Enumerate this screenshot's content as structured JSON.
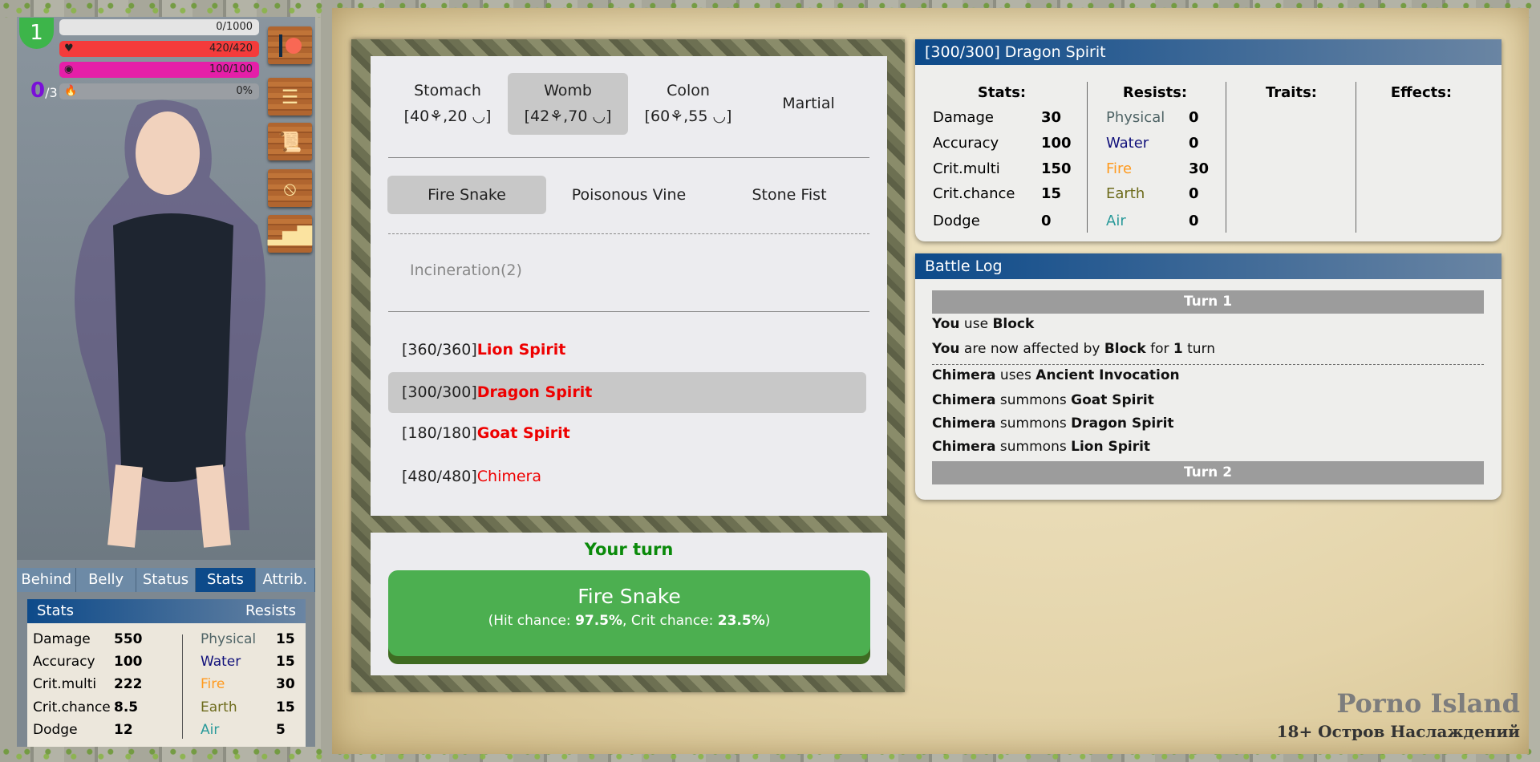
{
  "player": {
    "level": "1",
    "xp": "0/1000",
    "hp": "420/420",
    "lust": "100/100",
    "fire": "0%",
    "charges_current": "0",
    "charges_max": "/3",
    "xp_fraction": 0,
    "hp_fraction": 1,
    "lust_fraction": 1,
    "fire_fraction": 0
  },
  "side_buttons": [
    "patreon-icon",
    "list-icon",
    "scroll-icon",
    "forbidden-icon",
    "stats-chart-icon"
  ],
  "side_tabs": [
    {
      "label": "Behind"
    },
    {
      "label": "Belly"
    },
    {
      "label": "Status"
    },
    {
      "label": "Stats",
      "active": true
    },
    {
      "label": "Attrib."
    }
  ],
  "player_stats": {
    "title": "Stats",
    "resists_title": "Resists",
    "stats": [
      {
        "k": "Damage",
        "v": "550"
      },
      {
        "k": "Accuracy",
        "v": "100"
      },
      {
        "k": "Crit.multi",
        "v": "222"
      },
      {
        "k": "Crit.chance",
        "v": "8.5"
      },
      {
        "k": "Dodge",
        "v": "12"
      }
    ],
    "resists": [
      {
        "k": "Physical",
        "v": "15"
      },
      {
        "k": "Water",
        "v": "15"
      },
      {
        "k": "Fire",
        "v": "30"
      },
      {
        "k": "Earth",
        "v": "15"
      },
      {
        "k": "Air",
        "v": "5"
      }
    ]
  },
  "resist_colors": {
    "Physical": "#4f6466",
    "Water": "#10107a",
    "Fire": "#ff9a1e",
    "Earth": "#6d6b1c",
    "Air": "#2a9a9a"
  },
  "attack_types": [
    {
      "name": "Stomach",
      "detail": "[40⚘,20 ◡]"
    },
    {
      "name": "Womb",
      "detail": "[42⚘,70 ◡]",
      "selected": true
    },
    {
      "name": "Colon",
      "detail": "[60⚘,55 ◡]"
    },
    {
      "name": "Martial",
      "detail": ""
    }
  ],
  "skills": [
    {
      "name": "Fire Snake",
      "selected": true
    },
    {
      "name": "Poisonous Vine"
    },
    {
      "name": "Stone Fist"
    }
  ],
  "sub_skills": [
    {
      "name": "Incineration(2)",
      "disabled": true
    }
  ],
  "enemies": [
    {
      "hp": "[360/360]",
      "name": "Lion Spirit",
      "bold": true
    },
    {
      "hp": "[300/300]",
      "name": "Dragon Spirit",
      "bold": true,
      "selected": true
    },
    {
      "hp": "[180/180]",
      "name": "Goat Spirit",
      "bold": true
    },
    {
      "hp": "[480/480]",
      "name": "Chimera",
      "bold": false
    }
  ],
  "turn_status": "Your turn",
  "action": {
    "name": "Fire Snake",
    "hit_label": "(Hit chance: ",
    "hit": "97.5%",
    "crit_label": ", Crit chance: ",
    "crit": "23.5%",
    "close": ")"
  },
  "target": {
    "title": "[300/300] Dragon Spirit",
    "stats_h": "Stats:",
    "resists_h": "Resists:",
    "traits_h": "Traits:",
    "effects_h": "Effects:",
    "stats": [
      {
        "k": "Damage",
        "v": "30"
      },
      {
        "k": "Accuracy",
        "v": "100"
      },
      {
        "k": "Crit.multi",
        "v": "150"
      },
      {
        "k": "Crit.chance",
        "v": "15"
      },
      {
        "k": "Dodge",
        "v": "0"
      }
    ],
    "resists": [
      {
        "k": "Physical",
        "v": "0"
      },
      {
        "k": "Water",
        "v": "0"
      },
      {
        "k": "Fire",
        "v": "30"
      },
      {
        "k": "Earth",
        "v": "0"
      },
      {
        "k": "Air",
        "v": "0"
      }
    ]
  },
  "log": {
    "title": "Battle Log",
    "turn1": "Turn 1",
    "turn2": "Turn 2",
    "lines": [
      [
        {
          "t": "You",
          "b": true
        },
        {
          "t": " use "
        },
        {
          "t": "Block",
          "b": true
        }
      ],
      [
        {
          "t": "You",
          "b": true
        },
        {
          "t": " are now affected by "
        },
        {
          "t": "Block",
          "b": true
        },
        {
          "t": " for "
        },
        {
          "t": "1",
          "b": true
        },
        {
          "t": " turn"
        }
      ],
      [
        {
          "t": "Chimera",
          "b": true
        },
        {
          "t": " uses "
        },
        {
          "t": "Ancient Invocation",
          "b": true
        }
      ],
      [
        {
          "t": "Chimera",
          "b": true
        },
        {
          "t": " summons "
        },
        {
          "t": "Goat Spirit",
          "b": true
        }
      ],
      [
        {
          "t": "Chimera",
          "b": true
        },
        {
          "t": " summons "
        },
        {
          "t": "Dragon Spirit",
          "b": true
        }
      ],
      [
        {
          "t": "Chimera",
          "b": true
        },
        {
          "t": " summons "
        },
        {
          "t": "Lion Spirit",
          "b": true
        }
      ]
    ]
  },
  "logo": {
    "title": "Porno Island",
    "subtitle": "18+ Остров Наслаждений"
  }
}
